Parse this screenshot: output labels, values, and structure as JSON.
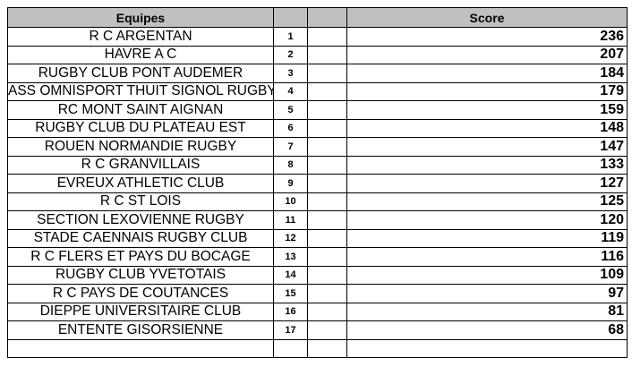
{
  "headers": {
    "team": "Equipes",
    "rank": "",
    "blank": "",
    "score": "Score"
  },
  "rows": [
    {
      "team": "R C ARGENTAN",
      "rank": "1",
      "score": "236"
    },
    {
      "team": "HAVRE A C",
      "rank": "2",
      "score": "207"
    },
    {
      "team": "RUGBY CLUB PONT AUDEMER",
      "rank": "3",
      "score": "184"
    },
    {
      "team": "ASS OMNISPORT THUIT SIGNOL RUGBY",
      "rank": "4",
      "score": "179"
    },
    {
      "team": "RC MONT SAINT AIGNAN",
      "rank": "5",
      "score": "159"
    },
    {
      "team": "RUGBY CLUB DU PLATEAU EST",
      "rank": "6",
      "score": "148"
    },
    {
      "team": "ROUEN NORMANDIE RUGBY",
      "rank": "7",
      "score": "147"
    },
    {
      "team": "R C GRANVILLAIS",
      "rank": "8",
      "score": "133"
    },
    {
      "team": "EVREUX ATHLETIC CLUB",
      "rank": "9",
      "score": "127"
    },
    {
      "team": "R C ST LOIS",
      "rank": "10",
      "score": "125"
    },
    {
      "team": "SECTION LEXOVIENNE RUGBY",
      "rank": "11",
      "score": "120"
    },
    {
      "team": "STADE CAENNAIS RUGBY CLUB",
      "rank": "12",
      "score": "119"
    },
    {
      "team": "R C FLERS ET PAYS DU BOCAGE",
      "rank": "13",
      "score": "116"
    },
    {
      "team": "RUGBY CLUB YVETOTAIS",
      "rank": "14",
      "score": "109"
    },
    {
      "team": "R C PAYS DE COUTANCES",
      "rank": "15",
      "score": "97"
    },
    {
      "team": "DIEPPE UNIVERSITAIRE CLUB",
      "rank": "16",
      "score": "81"
    },
    {
      "team": "ENTENTE GISORSIENNE",
      "rank": "17",
      "score": "68"
    },
    {
      "team": "",
      "rank": "",
      "score": ""
    }
  ]
}
